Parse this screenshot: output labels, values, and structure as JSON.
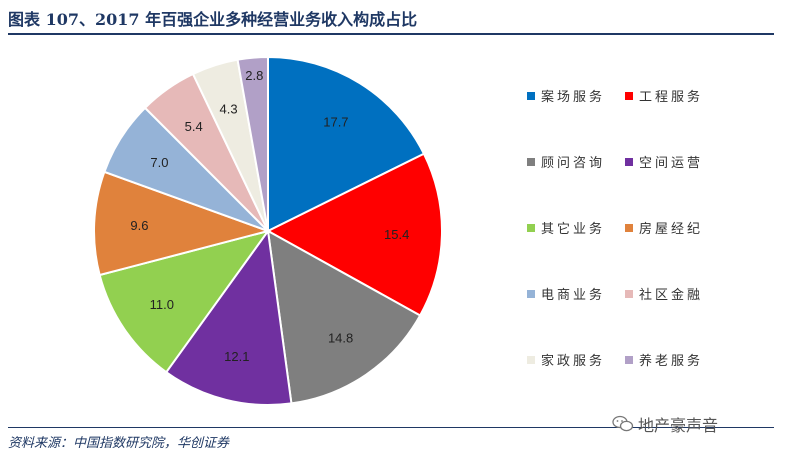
{
  "title": "图表 107、2017 年百强企业多种经营业务收入构成占比",
  "source": "资料来源：中国指数研究院，华创证券",
  "watermark": "地产豪声音",
  "chart_data": {
    "type": "pie",
    "title": "图表 107、2017 年百强企业多种经营业务收入构成占比",
    "legend_position": "right",
    "slices": [
      {
        "label": "案场服务",
        "value": 17.7,
        "color": "#0070c0"
      },
      {
        "label": "工程服务",
        "value": 15.4,
        "color": "#ff0000"
      },
      {
        "label": "顾问咨询",
        "value": 14.8,
        "color": "#7f7f7f"
      },
      {
        "label": "空间运营",
        "value": 12.1,
        "color": "#7030a0"
      },
      {
        "label": "其它业务",
        "value": 11.0,
        "color": "#92d050"
      },
      {
        "label": "房屋经纪",
        "value": 9.6,
        "color": "#e0823c"
      },
      {
        "label": "电商业务",
        "value": 7.0,
        "color": "#95b3d7"
      },
      {
        "label": "社区金融",
        "value": 5.4,
        "color": "#e6b9b8"
      },
      {
        "label": "家政服务",
        "value": 4.3,
        "color": "#eeece1"
      },
      {
        "label": "养老服务",
        "value": 2.8,
        "color": "#b1a0c7"
      }
    ]
  }
}
